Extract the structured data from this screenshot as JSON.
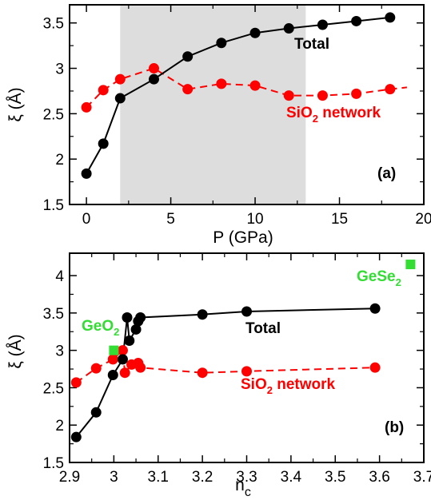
{
  "chart_data": [
    {
      "type": "line",
      "panel_label": "(a)",
      "xlabel": "P (GPa)",
      "ylabel": "ξ (Å)",
      "xlim": [
        -1,
        20
      ],
      "ylim": [
        1.5,
        3.7
      ],
      "xticks": [
        "0",
        "5",
        "10",
        "15",
        "20"
      ],
      "yticks": [
        "1.5",
        "2",
        "2.5",
        "3",
        "3.5"
      ],
      "grid": false,
      "shaded_region_x": [
        2,
        13
      ],
      "series": [
        {
          "name": "Total",
          "color": "#000000",
          "line": "solid",
          "x": [
            0,
            1,
            2,
            4,
            6,
            8,
            10,
            12,
            14,
            16,
            18
          ],
          "y": [
            1.84,
            2.17,
            2.67,
            2.88,
            3.13,
            3.28,
            3.39,
            3.44,
            3.48,
            3.52,
            3.56
          ]
        },
        {
          "name": "SiO2 network",
          "label_base": "SiO",
          "label_sub": "2",
          "label_rest": " network",
          "color": "#ff0000",
          "line": "dashed",
          "x": [
            0,
            1,
            2,
            4,
            6,
            8,
            10,
            12,
            14,
            16,
            18
          ],
          "y": [
            2.57,
            2.76,
            2.88,
            3.0,
            2.77,
            2.83,
            2.81,
            2.7,
            2.7,
            2.72,
            2.77
          ],
          "extend_to_x": 19
        }
      ]
    },
    {
      "type": "line",
      "panel_label": "(b)",
      "xlabel": "n",
      "xlabel_sub": "c",
      "ylabel": "ξ (Å)",
      "xlim": [
        2.9,
        3.7
      ],
      "ylim": [
        1.5,
        4.3
      ],
      "xticks": [
        "2.9",
        "3",
        "3.1",
        "3.2",
        "3.3",
        "3.4",
        "3.5",
        "3.6",
        "3.7"
      ],
      "yticks": [
        "1.5",
        "2",
        "2.5",
        "3",
        "3.5",
        "4"
      ],
      "grid": false,
      "series": [
        {
          "name": "Total",
          "color": "#000000",
          "line": "solid",
          "x": [
            2.915,
            2.96,
            2.998,
            3.02,
            3.03,
            3.035,
            3.05,
            3.055,
            3.06,
            3.2,
            3.3,
            3.59
          ],
          "y": [
            1.84,
            2.17,
            2.67,
            2.88,
            3.44,
            3.13,
            3.28,
            3.39,
            3.44,
            3.48,
            3.52,
            3.56
          ]
        },
        {
          "name": "SiO2 network",
          "label_base": "SiO",
          "label_sub": "2",
          "label_rest": " network",
          "color": "#ff0000",
          "line": "dashed",
          "x": [
            2.915,
            2.96,
            2.998,
            3.02,
            3.025,
            3.04,
            3.055,
            3.06,
            3.2,
            3.3,
            3.59
          ],
          "y": [
            2.57,
            2.76,
            2.88,
            3.0,
            2.7,
            2.81,
            2.83,
            2.77,
            2.7,
            2.72,
            2.77
          ]
        }
      ],
      "reference_points": [
        {
          "name": "GeO2",
          "label_base": "GeO",
          "label_sub": "2",
          "x": 3.0,
          "y": 3.0,
          "color": "#33dd33"
        },
        {
          "name": "GeSe2",
          "label_base": "GeSe",
          "label_sub": "2",
          "x": 3.67,
          "y": 4.15,
          "color": "#33dd33"
        }
      ]
    }
  ]
}
